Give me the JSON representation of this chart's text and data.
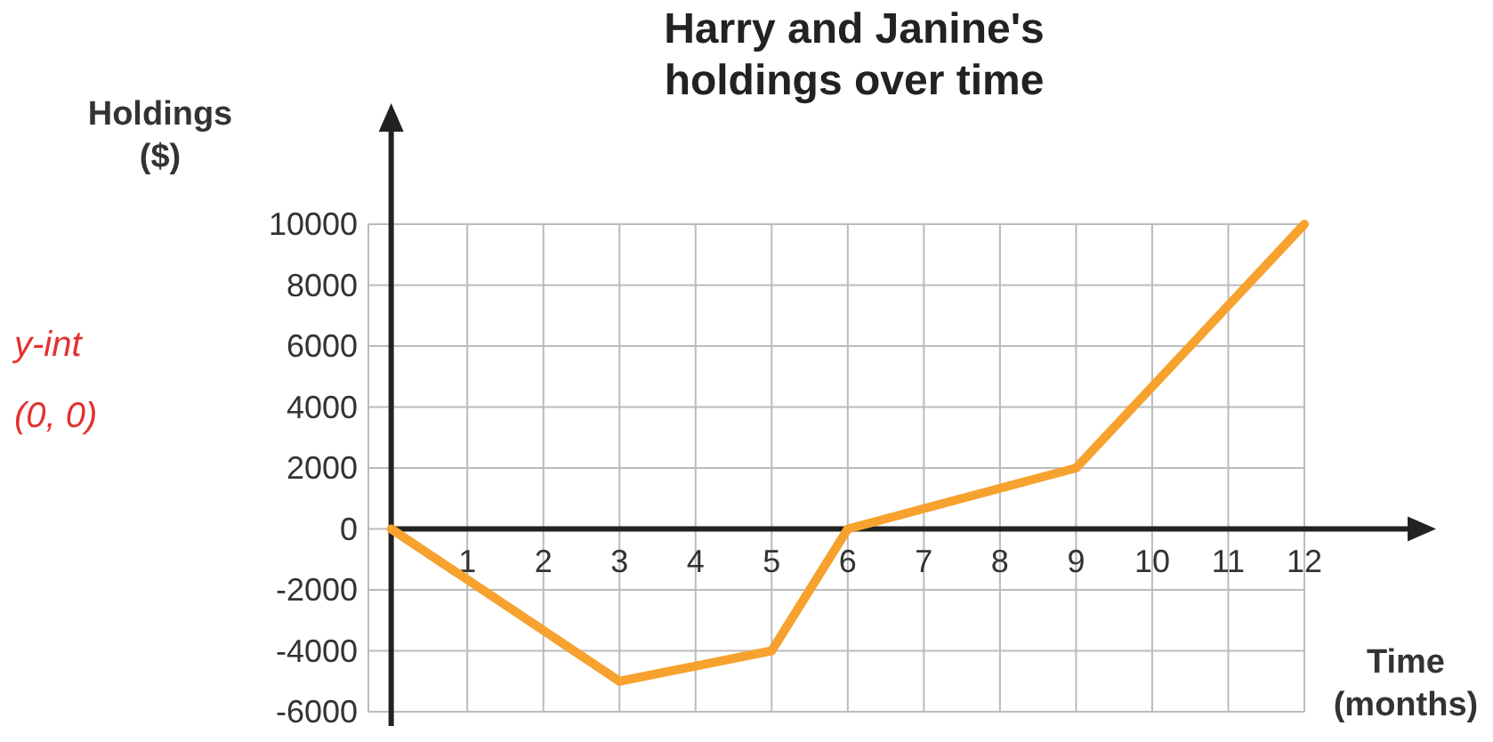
{
  "chart_data": {
    "type": "line",
    "title": "Harry and Janine's holdings over time",
    "xlabel": "Time (months)",
    "ylabel": "Holdings ($)",
    "x": [
      0,
      3,
      5,
      6,
      9,
      12
    ],
    "series": [
      {
        "color": "#f7a22e",
        "values": [
          0,
          -5000,
          -4000,
          0,
          2000,
          10000
        ]
      }
    ],
    "xlim": [
      -0.3,
      13.45
    ],
    "ylim": [
      -6000,
      10000
    ],
    "xticks": [
      1,
      2,
      3,
      4,
      5,
      6,
      7,
      8,
      9,
      10,
      11,
      12
    ],
    "yticks": [
      -6000,
      -4000,
      -2000,
      0,
      2000,
      4000,
      6000,
      8000,
      10000
    ],
    "grid": true,
    "marker": "none",
    "line_style": "solid",
    "annotations": [
      "y-int (0, 0)"
    ]
  }
}
